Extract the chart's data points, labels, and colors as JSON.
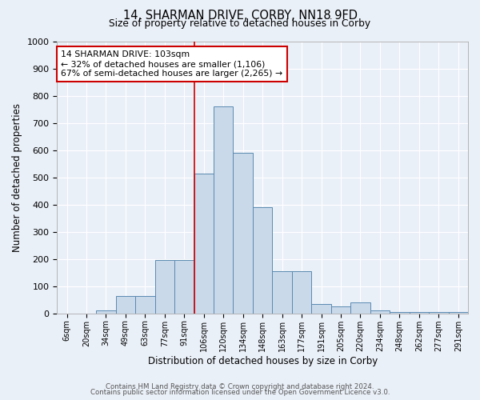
{
  "title_line1": "14, SHARMAN DRIVE, CORBY, NN18 9FD",
  "title_line2": "Size of property relative to detached houses in Corby",
  "xlabel": "Distribution of detached houses by size in Corby",
  "ylabel": "Number of detached properties",
  "bin_labels": [
    "6sqm",
    "20sqm",
    "34sqm",
    "49sqm",
    "63sqm",
    "77sqm",
    "91sqm",
    "106sqm",
    "120sqm",
    "134sqm",
    "148sqm",
    "163sqm",
    "177sqm",
    "191sqm",
    "205sqm",
    "220sqm",
    "234sqm",
    "248sqm",
    "262sqm",
    "277sqm",
    "291sqm"
  ],
  "bar_values": [
    0,
    0,
    10,
    65,
    65,
    195,
    195,
    515,
    760,
    590,
    390,
    155,
    155,
    35,
    25,
    40,
    10,
    5,
    5,
    5,
    5
  ],
  "bar_color": "#c9d9ea",
  "bar_edge_color": "#5a8ab0",
  "background_color": "#eaf0f8",
  "grid_color": "#ffffff",
  "vline_x_index": 7,
  "vline_color": "#cc0000",
  "annotation_text": "14 SHARMAN DRIVE: 103sqm\n← 32% of detached houses are smaller (1,106)\n67% of semi-detached houses are larger (2,265) →",
  "annotation_box_color": "#ffffff",
  "annotation_box_edge": "#cc0000",
  "ylim": [
    0,
    1000
  ],
  "yticks": [
    0,
    100,
    200,
    300,
    400,
    500,
    600,
    700,
    800,
    900,
    1000
  ],
  "footer_line1": "Contains HM Land Registry data © Crown copyright and database right 2024.",
  "footer_line2": "Contains public sector information licensed under the Open Government Licence v3.0.",
  "figsize": [
    6.0,
    5.0
  ],
  "dpi": 100
}
